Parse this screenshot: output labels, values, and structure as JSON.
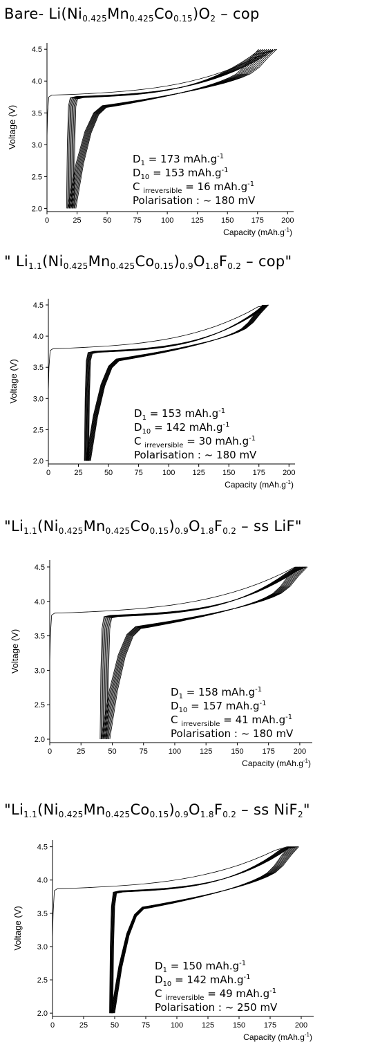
{
  "chart_data": [
    {
      "type": "line",
      "title": {
        "parts": [
          [
            "Bare- Li(Ni",
            ""
          ],
          [
            "0.425",
            "sub"
          ],
          [
            "Mn",
            ""
          ],
          [
            "0.425",
            "sub"
          ],
          [
            "Co",
            ""
          ],
          [
            "0.15",
            "sub"
          ],
          [
            ")O",
            ""
          ],
          [
            "2",
            "sub"
          ],
          [
            " – cop",
            ""
          ]
        ]
      },
      "xlabel": "Capacity (mAh.g",
      "xlabel_sup": "-1",
      "xlabel_end": ")",
      "ylabel": "Voltage (V)",
      "xlim": [
        0,
        205
      ],
      "ylim": [
        1.95,
        4.6
      ],
      "xticks": [
        "0",
        "25",
        "50",
        "75",
        "100",
        "125",
        "150",
        "175",
        "200"
      ],
      "yticks": [
        "2.0",
        "2.5",
        "3.0",
        "3.5",
        "4.0",
        "4.5"
      ],
      "annotations": [
        {
          "main": "D",
          "sub": "1",
          "rest": " = 173 mAh.g",
          "sup": "-1"
        },
        {
          "main": "D",
          "sub": "10",
          "rest": " = 153 mAh.g",
          "sup": "-1"
        },
        {
          "main": "C ",
          "sub": "irreversible",
          "rest": " = 16 mAh.g",
          "sup": "-1"
        },
        {
          "main": "Polarisation : ~ 180 mV",
          "sub": "",
          "rest": "",
          "sup": ""
        }
      ],
      "cycles": {
        "count": 10,
        "first_charge_start": 0,
        "charge_end": [
          176,
          191
        ],
        "discharge_end": [
          17,
          24
        ],
        "first_charge_plateau": 3.78,
        "charge_plateau": 3.76,
        "discharge_plateau": 3.62
      }
    },
    {
      "type": "line",
      "title": {
        "parts": [
          [
            "\" Li",
            ""
          ],
          [
            "1.1",
            "sub"
          ],
          [
            "(Ni",
            ""
          ],
          [
            "0.425",
            "sub"
          ],
          [
            "Mn",
            ""
          ],
          [
            "0.425",
            "sub"
          ],
          [
            "Co",
            ""
          ],
          [
            "0.15",
            "sub"
          ],
          [
            ")",
            ""
          ],
          [
            "0.9",
            "sub"
          ],
          [
            "O",
            ""
          ],
          [
            "1.8",
            "sub"
          ],
          [
            "F",
            ""
          ],
          [
            "0.2",
            "sub"
          ],
          [
            " – cop\"",
            ""
          ]
        ]
      },
      "xlabel": "Capacity (mAh.g",
      "xlabel_sup": "-1",
      "xlabel_end": ")",
      "ylabel": "Voltage (V)",
      "xlim": [
        0,
        205
      ],
      "ylim": [
        1.95,
        4.6
      ],
      "xticks": [
        "0",
        "25",
        "50",
        "75",
        "100",
        "125",
        "150",
        "175",
        "200"
      ],
      "yticks": [
        "2.0",
        "2.5",
        "3.0",
        "3.5",
        "4.0",
        "4.5"
      ],
      "annotations": [
        {
          "main": "D",
          "sub": "1",
          "rest": " = 153 mAh.g",
          "sup": "-1"
        },
        {
          "main": "D",
          "sub": "10",
          "rest": " = 142 mAh.g",
          "sup": "-1"
        },
        {
          "main": "C ",
          "sub": "irreversible",
          "rest": " = 30 mAh.g",
          "sup": "-1"
        },
        {
          "main": "Polarisation : ~ 180 mV",
          "sub": "",
          "rest": "",
          "sup": ""
        }
      ],
      "cycles": {
        "count": 10,
        "first_charge_start": 0,
        "charge_end": [
          178,
          183
        ],
        "discharge_end": [
          31,
          35
        ],
        "first_charge_plateau": 3.8,
        "charge_plateau": 3.76,
        "discharge_plateau": 3.64
      }
    },
    {
      "type": "line",
      "title": {
        "parts": [
          [
            "\"Li",
            ""
          ],
          [
            "1.1",
            "sub"
          ],
          [
            "(Ni",
            ""
          ],
          [
            "0.425",
            "sub"
          ],
          [
            "Mn",
            ""
          ],
          [
            "0.425",
            "sub"
          ],
          [
            "Co",
            ""
          ],
          [
            "0.15",
            "sub"
          ],
          [
            ")",
            ""
          ],
          [
            "0.9",
            "sub"
          ],
          [
            "O",
            ""
          ],
          [
            "1.8",
            "sub"
          ],
          [
            "F",
            ""
          ],
          [
            "0.2",
            "sub"
          ],
          [
            " – ss LiF\"",
            ""
          ]
        ]
      },
      "xlabel": "Capacity (mAh.g",
      "xlabel_sup": "-1",
      "xlabel_end": ")",
      "ylabel": "Voltage (V)",
      "xlim": [
        0,
        210
      ],
      "ylim": [
        1.95,
        4.6
      ],
      "xticks": [
        "0",
        "25",
        "50",
        "75",
        "100",
        "125",
        "150",
        "175",
        "200"
      ],
      "yticks": [
        "2.0",
        "2.5",
        "3.0",
        "3.5",
        "4.0",
        "4.5"
      ],
      "annotations": [
        {
          "main": "D",
          "sub": "1",
          "rest": " = 158 mAh.g",
          "sup": "-1"
        },
        {
          "main": "D",
          "sub": "10",
          "rest": " = 157 mAh.g",
          "sup": "-1"
        },
        {
          "main": "C ",
          "sub": "irreversible",
          "rest": " = 41 mAh.g",
          "sup": "-1"
        },
        {
          "main": "Polarisation : ~ 180 mV",
          "sub": "",
          "rest": "",
          "sup": ""
        }
      ],
      "cycles": {
        "count": 10,
        "first_charge_start": 0,
        "charge_end": [
          197,
          206
        ],
        "discharge_end": [
          41,
          48
        ],
        "first_charge_plateau": 3.83,
        "charge_plateau": 3.8,
        "discharge_plateau": 3.64
      }
    },
    {
      "type": "line",
      "title": {
        "parts": [
          [
            "\"Li",
            ""
          ],
          [
            "1.1",
            "sub"
          ],
          [
            "(Ni",
            ""
          ],
          [
            "0.425",
            "sub"
          ],
          [
            "Mn",
            ""
          ],
          [
            "0.425",
            "sub"
          ],
          [
            "Co",
            ""
          ],
          [
            "0.15",
            "sub"
          ],
          [
            ")",
            ""
          ],
          [
            "0.9",
            "sub"
          ],
          [
            "O",
            ""
          ],
          [
            "1.8",
            "sub"
          ],
          [
            "F",
            ""
          ],
          [
            "0.2",
            "sub"
          ],
          [
            " – ss NiF",
            ""
          ],
          [
            "2",
            "sub"
          ],
          [
            "\"",
            ""
          ]
        ]
      },
      "xlabel": "Capacity (mAh.g",
      "xlabel_sup": "-1",
      "xlabel_end": ")",
      "ylabel": "Voltage (V)",
      "xlim": [
        0,
        210
      ],
      "ylim": [
        1.95,
        4.6
      ],
      "xticks": [
        "0",
        "25",
        "50",
        "75",
        "100",
        "125",
        "150",
        "175",
        "200"
      ],
      "yticks": [
        "2.0",
        "2.5",
        "3.0",
        "3.5",
        "4.0",
        "4.5"
      ],
      "annotations": [
        {
          "main": "D",
          "sub": "1",
          "rest": " = 150 mAh.g",
          "sup": "-1"
        },
        {
          "main": "D",
          "sub": "10",
          "rest": " = 142 mAh.g",
          "sup": "-1"
        },
        {
          "main": "C ",
          "sub": "irreversible",
          "rest": " = 49 mAh.g",
          "sup": "-1"
        },
        {
          "main": "Polarisation : ~ 250 mV",
          "sub": "",
          "rest": "",
          "sup": ""
        }
      ],
      "cycles": {
        "count": 10,
        "first_charge_start": 0,
        "charge_end": [
          190,
          198
        ],
        "discharge_end": [
          47,
          50
        ],
        "first_charge_plateau": 3.87,
        "charge_plateau": 3.84,
        "discharge_plateau": 3.6
      }
    }
  ]
}
